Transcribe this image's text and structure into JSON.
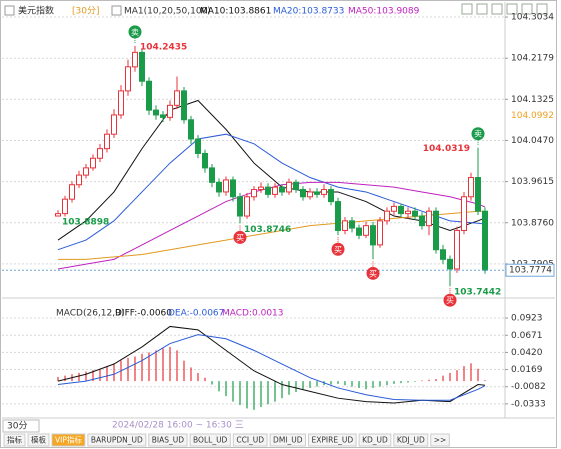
{
  "chart_data": [
    {
      "type": "candlestick",
      "title": "美元指数",
      "period": "[30分]",
      "indicator": "MA1(10,20,50,100)",
      "up_color": "#e8333a",
      "down_color": "#1a9b4a",
      "grid": true,
      "ylim": [
        103.7363,
        104.3222
      ],
      "yticks": [
        104.3034,
        104.2179,
        104.1325,
        {
          "value": 104.047,
          "label": "104.0470"
        },
        103.9615,
        {
          "value": 103.876,
          "label": "103.8760"
        },
        103.7905
      ],
      "axis_marker": {
        "value": 104.0992,
        "label": "104.0992",
        "color": "#f0a020"
      },
      "last_color": "#6fa8dc",
      "candles": [
        [
          103.89,
          103.902,
          103.8898,
          103.895
        ],
        [
          103.895,
          103.932,
          103.889,
          103.925
        ],
        [
          103.925,
          103.962,
          103.918,
          103.955
        ],
        [
          103.955,
          103.984,
          103.948,
          103.975
        ],
        [
          103.975,
          103.998,
          103.968,
          103.99
        ],
        [
          103.99,
          104.018,
          103.984,
          104.01
        ],
        [
          104.01,
          104.04,
          104.002,
          104.03
        ],
        [
          104.03,
          104.07,
          104.022,
          104.06
        ],
        [
          104.06,
          104.112,
          104.052,
          104.1
        ],
        [
          104.1,
          104.162,
          104.092,
          104.15
        ],
        [
          104.15,
          104.215,
          104.14,
          104.2
        ],
        [
          104.2,
          104.2435,
          104.19,
          104.23
        ],
        [
          104.23,
          104.238,
          104.16,
          104.17
        ],
        [
          104.17,
          104.178,
          104.1,
          104.11
        ],
        [
          104.11,
          104.12,
          104.09,
          104.1
        ],
        [
          104.1,
          104.108,
          104.085,
          104.095
        ],
        [
          104.095,
          104.13,
          104.088,
          104.12
        ],
        [
          104.12,
          104.18,
          104.112,
          104.15
        ],
        [
          104.15,
          104.158,
          104.082,
          104.09
        ],
        [
          104.09,
          104.098,
          104.04,
          104.05
        ],
        [
          104.05,
          104.058,
          104.01,
          104.02
        ],
        [
          104.02,
          104.028,
          103.98,
          103.99
        ],
        [
          103.99,
          103.998,
          103.95,
          103.96
        ],
        [
          103.96,
          103.968,
          103.93,
          103.94
        ],
        [
          103.94,
          103.972,
          103.932,
          103.965
        ],
        [
          103.965,
          103.972,
          103.92,
          103.93
        ],
        [
          103.93,
          103.938,
          103.8746,
          103.89
        ],
        [
          103.89,
          103.938,
          103.884,
          103.93
        ],
        [
          103.93,
          103.952,
          103.922,
          103.945
        ],
        [
          103.945,
          103.96,
          103.938,
          103.95
        ],
        [
          103.95,
          103.958,
          103.928,
          103.935
        ],
        [
          103.935,
          103.958,
          103.928,
          103.95
        ],
        [
          103.95,
          103.956,
          103.932,
          103.94
        ],
        [
          103.94,
          103.968,
          103.934,
          103.96
        ],
        [
          103.96,
          103.966,
          103.938,
          103.945
        ],
        [
          103.945,
          103.952,
          103.922,
          103.93
        ],
        [
          103.93,
          103.948,
          103.924,
          103.94
        ],
        [
          103.94,
          103.948,
          103.928,
          103.935
        ],
        [
          103.935,
          103.956,
          103.928,
          103.945
        ],
        [
          103.945,
          103.952,
          103.912,
          103.92
        ],
        [
          103.92,
          103.928,
          103.85,
          103.86
        ],
        [
          103.86,
          103.888,
          103.852,
          103.88
        ],
        [
          103.88,
          103.888,
          103.856,
          103.865
        ],
        [
          103.865,
          103.872,
          103.842,
          103.85
        ],
        [
          103.85,
          103.878,
          103.844,
          103.87
        ],
        [
          103.87,
          103.878,
          103.8,
          103.83
        ],
        [
          103.83,
          103.888,
          103.824,
          103.88
        ],
        [
          103.88,
          103.908,
          103.872,
          103.9
        ],
        [
          103.9,
          103.918,
          103.892,
          103.91
        ],
        [
          103.91,
          103.916,
          103.888,
          103.895
        ],
        [
          103.895,
          103.908,
          103.884,
          103.9
        ],
        [
          103.9,
          103.908,
          103.882,
          103.89
        ],
        [
          103.89,
          103.898,
          103.862,
          103.87
        ],
        [
          103.87,
          103.908,
          103.85,
          103.9
        ],
        [
          103.9,
          103.908,
          103.812,
          103.82
        ],
        [
          103.82,
          103.83,
          103.79,
          103.8
        ],
        [
          103.8,
          103.808,
          103.7442,
          103.78
        ],
        [
          103.78,
          103.868,
          103.772,
          103.86
        ],
        [
          103.86,
          103.94,
          103.852,
          103.93
        ],
        [
          103.93,
          103.98,
          103.922,
          103.97
        ],
        [
          103.97,
          104.0319,
          103.892,
          103.9
        ],
        [
          103.9,
          103.908,
          103.77,
          103.7774
        ]
      ],
      "signals": [
        null,
        null,
        null,
        null,
        null,
        null,
        null,
        null,
        null,
        null,
        null,
        "卖",
        null,
        null,
        null,
        null,
        null,
        null,
        null,
        null,
        null,
        null,
        null,
        null,
        null,
        null,
        "买",
        null,
        null,
        null,
        null,
        null,
        null,
        null,
        null,
        null,
        null,
        null,
        null,
        null,
        "买",
        null,
        null,
        null,
        null,
        "买",
        null,
        null,
        null,
        null,
        null,
        null,
        null,
        null,
        null,
        null,
        "买",
        null,
        null,
        null,
        "卖",
        null
      ],
      "price_labels": [
        104.2435,
        103.8898,
        103.8746,
        104.0319,
        103.7442
      ],
      "ma_x": [
        0,
        4,
        8,
        12,
        16,
        20,
        24,
        28,
        32,
        36,
        40,
        44,
        48,
        52,
        56,
        60,
        61
      ],
      "series": [
        {
          "name": "MA10:103.8861",
          "color": "#111111",
          "values": [
            103.84,
            103.88,
            103.94,
            104.03,
            104.11,
            104.13,
            104.07,
            104.0,
            103.95,
            103.94,
            103.94,
            103.92,
            103.89,
            103.88,
            103.86,
            103.88,
            103.8861
          ]
        },
        {
          "name": "MA20:103.8733",
          "color": "#2a5bd7",
          "values": [
            103.82,
            103.84,
            103.88,
            103.94,
            104.0,
            104.05,
            104.06,
            104.04,
            104.0,
            103.97,
            103.95,
            103.94,
            103.92,
            103.9,
            103.88,
            103.875,
            103.8733
          ]
        },
        {
          "name": "MA50:103.9089",
          "color": "#c020c0",
          "values": [
            103.78,
            103.79,
            103.8,
            103.83,
            103.86,
            103.89,
            103.92,
            103.94,
            103.955,
            103.96,
            103.96,
            103.955,
            103.95,
            103.94,
            103.93,
            103.915,
            103.9089
          ]
        },
        {
          "color": "#e09a20",
          "values": [
            103.8,
            103.8,
            103.805,
            103.81,
            103.82,
            103.83,
            103.84,
            103.85,
            103.86,
            103.87,
            103.875,
            103.88,
            103.885,
            103.89,
            103.895,
            103.9,
            103.9
          ]
        }
      ]
    },
    {
      "type": "macd",
      "title": "MACD(26,12,9)",
      "up_color": "#e8333a",
      "down_color": "#1a9b4a",
      "grid": true,
      "ylim": [
        -0.054,
        0.107
      ],
      "yticks": [
        0.0923,
        0.0671,
        {
          "value": 0.042,
          "label": "0.0420"
        },
        0.0169,
        -0.0082,
        -0.0333
      ],
      "x": [
        0,
        4,
        8,
        12,
        16,
        20,
        24,
        28,
        32,
        36,
        40,
        44,
        48,
        52,
        56,
        60,
        61
      ],
      "series": [
        {
          "name": "DIFF:-0.0060",
          "color": "#111111",
          "values": [
            0.0,
            0.01,
            0.025,
            0.05,
            0.08,
            0.075,
            0.045,
            0.015,
            -0.005,
            -0.015,
            -0.025,
            -0.03,
            -0.032,
            -0.028,
            -0.03,
            -0.005,
            -0.006
          ]
        },
        {
          "name": "DEA:-0.0067",
          "color": "#2a5bd7",
          "values": [
            -0.005,
            0.0,
            0.01,
            0.03,
            0.055,
            0.068,
            0.062,
            0.045,
            0.025,
            0.005,
            -0.01,
            -0.02,
            -0.027,
            -0.028,
            -0.028,
            -0.012,
            -0.0067
          ]
        }
      ],
      "histogram": {
        "name": "MACD:0.0013",
        "color": "#c020c0",
        "values": [
          0.006,
          0.008,
          0.01,
          0.012,
          0.014,
          0.016,
          0.018,
          0.022,
          0.026,
          0.03,
          0.034,
          0.036,
          0.04,
          0.042,
          0.045,
          0.048,
          0.05,
          0.045,
          0.03,
          0.02,
          0.012,
          0.005,
          -0.005,
          -0.015,
          -0.022,
          -0.03,
          -0.035,
          -0.04,
          -0.042,
          -0.038,
          -0.034,
          -0.03,
          -0.025,
          -0.02,
          -0.016,
          -0.012,
          -0.01,
          -0.008,
          -0.006,
          -0.005,
          -0.004,
          -0.006,
          -0.008,
          -0.01,
          -0.012,
          -0.01,
          -0.008,
          -0.006,
          -0.004,
          -0.003,
          -0.002,
          -0.001,
          0.001,
          0.002,
          0.003,
          0.008,
          0.012,
          0.016,
          0.022,
          0.026,
          0.018,
          0.0013
        ]
      }
    }
  ],
  "footer": {
    "period": "30分",
    "date": "2024/02/28 16:00 ~ 16:30 三",
    "tabs": [
      "指标",
      "模板",
      "VIP指标",
      "BARUPDN_UD",
      "BIAS_UD",
      "BOLL_UD",
      "CCI_UD",
      "DMI_UD",
      "EXPIRE_UD",
      "KD_UD",
      "KDJ_UD",
      ">>"
    ]
  }
}
